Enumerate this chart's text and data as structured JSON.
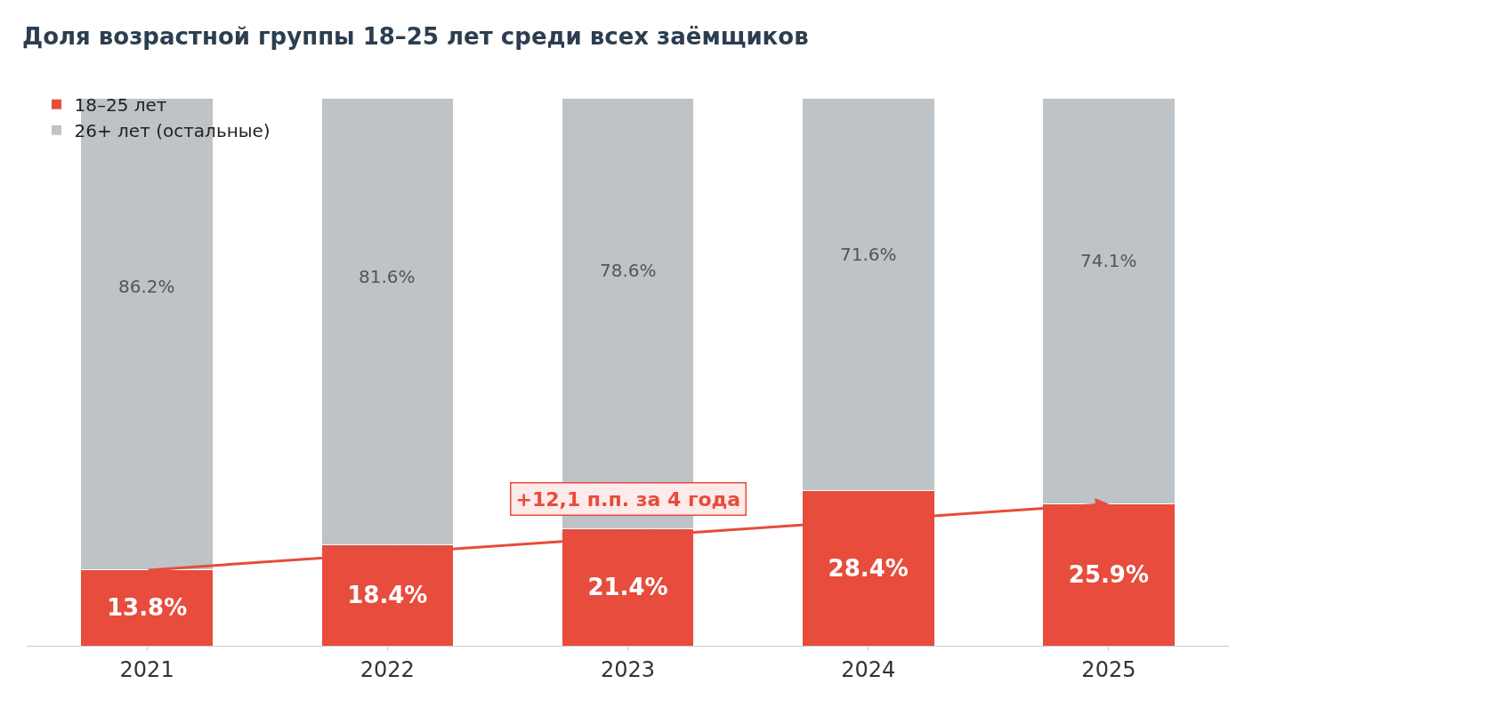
{
  "chart_data": {
    "type": "bar",
    "stacked": true,
    "title": "Доля возрастной группы 18–25 лет среди всех заёмщиков",
    "categories": [
      "2021",
      "2022",
      "2023",
      "2024",
      "2025"
    ],
    "series": [
      {
        "name": "18–25 лет",
        "color": "#e74c3c",
        "values": [
          13.8,
          18.4,
          21.4,
          28.4,
          25.9
        ],
        "value_labels": [
          "13.8%",
          "18.4%",
          "21.4%",
          "28.4%",
          "25.9%"
        ]
      },
      {
        "name": "26+ лет (остальные)",
        "color": "#bdc3c7",
        "values": [
          86.2,
          81.6,
          78.6,
          71.6,
          74.1
        ],
        "value_labels": [
          "86.2%",
          "81.6%",
          "78.6%",
          "71.6%",
          "74.1%"
        ]
      }
    ],
    "legend": "top left",
    "annotations": [
      "+12,1 п.п. за 4 года"
    ]
  }
}
